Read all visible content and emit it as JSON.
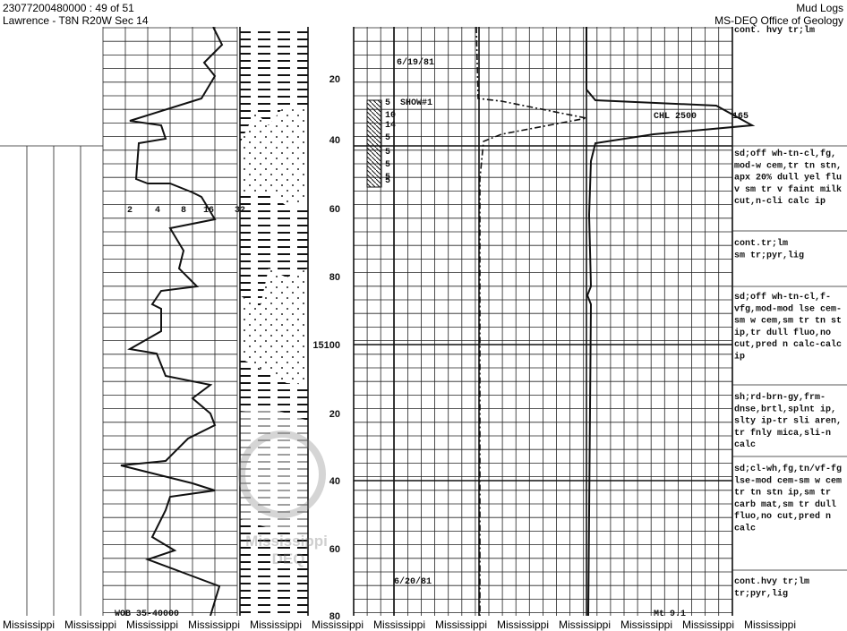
{
  "header": {
    "left_line1": "23077200480000 : 49 of 51",
    "left_line2": "Lawrence - T8N R20W Sec 14",
    "right_line1": "Mud Logs",
    "right_line2": "MS-DEQ Office of Geology"
  },
  "depth_labels": [
    "20",
    "40",
    "60",
    "80",
    "15100",
    "20",
    "40",
    "60",
    "80"
  ],
  "rate_scale": [
    "2",
    "4",
    "8",
    "16",
    "32"
  ],
  "show": {
    "label": "SHOW#1",
    "numbers": [
      "5",
      "10",
      "14",
      "5",
      "5",
      "5",
      "5",
      "5"
    ]
  },
  "dates": [
    "6/19/81",
    "6/20/81"
  ],
  "gas": {
    "label": "CHL 2500",
    "peak": "165"
  },
  "wob": "WOB 35-40000",
  "mud": "Mt 9.1",
  "descriptions": [
    [
      "cont. hvy tr;lm"
    ],
    [
      "sd;off wh-tn-cl,fg,",
      "mod-w cem,tr tn stn,",
      "apx 20% dull yel flu",
      "v sm tr v faint milk",
      "cut,n-cli calc ip"
    ],
    [
      "cont.tr;lm",
      "sm tr;pyr,lig"
    ],
    [
      "sd;off wh-tn-cl,f-",
      "vfg,mod-mod lse cem-",
      "sm w cem,sm tr tn st",
      "ip,tr dull fluo,no",
      "cut,pred n calc-calc",
      "ip"
    ],
    [
      "sh;rd-brn-gy,frm-",
      "dnse,brtl,splnt ip,",
      "slty ip-tr sli aren,",
      "tr fnly mica,sli-n",
      "calc"
    ],
    [
      "sd;cl-wh,fg,tn/vf-fg",
      "lse-mod cem-sm w cem",
      "tr tn stn ip,sm tr",
      "carb mat,sm tr dull",
      "fluo,no cut,pred n",
      "calc"
    ],
    [
      "cont.hvy tr;lm",
      "tr;pyr,lig"
    ]
  ],
  "watermark": [
    "Mississippi",
    "DEQ"
  ],
  "footer": [
    "Mississippi",
    "Mississippi",
    "Mississippi",
    "Mississippi",
    "Mississippi",
    "Mississippi",
    "Mississippi",
    "Mississippi",
    "Mississippi",
    "Mississippi",
    "Mississippi",
    "Mississippi",
    "Mississippi"
  ]
}
